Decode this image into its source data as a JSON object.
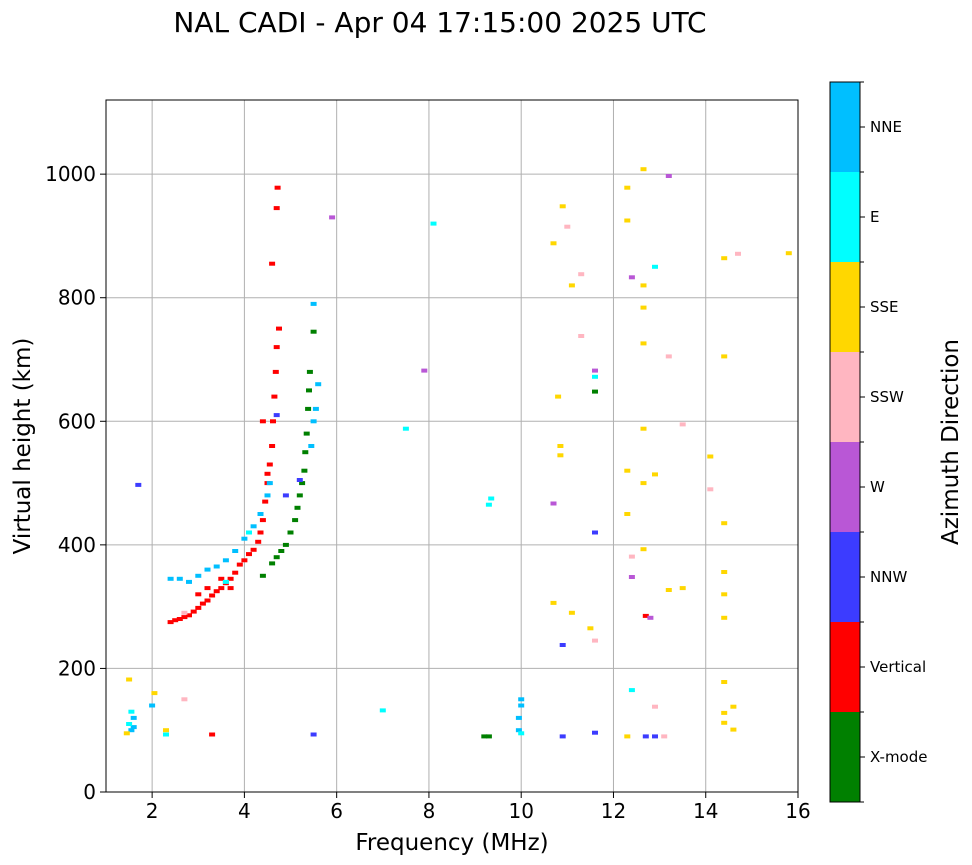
{
  "chart_data": {
    "type": "scatter",
    "title": "NAL CADI - Apr 04 17:15:00 2025 UTC",
    "xlabel": "Frequency (MHz)",
    "ylabel": "Virtual height (km)",
    "xlim": [
      1,
      16
    ],
    "ylim": [
      0,
      1120
    ],
    "xticks": [
      2,
      4,
      6,
      8,
      10,
      12,
      14,
      16
    ],
    "yticks": [
      0,
      200,
      400,
      600,
      800,
      1000
    ],
    "grid": true,
    "colorbar": {
      "label": "Azimuth Direction",
      "categories": [
        {
          "name": "X-mode",
          "color": "#008000"
        },
        {
          "name": "Vertical",
          "color": "#ff0000"
        },
        {
          "name": "NNW",
          "color": "#3c3cff"
        },
        {
          "name": "W",
          "color": "#b957d6"
        },
        {
          "name": "SSW",
          "color": "#ffb6c1"
        },
        {
          "name": "SSE",
          "color": "#ffd700"
        },
        {
          "name": "E",
          "color": "#00ffff"
        },
        {
          "name": "NNE",
          "color": "#00bfff"
        }
      ]
    },
    "traces": [
      {
        "category": "Vertical",
        "points": [
          [
            2.4,
            275
          ],
          [
            2.5,
            278
          ],
          [
            2.6,
            280
          ],
          [
            2.7,
            283
          ],
          [
            2.8,
            286
          ],
          [
            2.9,
            292
          ],
          [
            3.0,
            298
          ],
          [
            3.1,
            305
          ],
          [
            3.2,
            310
          ],
          [
            3.3,
            318
          ],
          [
            3.4,
            325
          ],
          [
            3.5,
            330
          ],
          [
            3.6,
            338
          ],
          [
            3.7,
            345
          ],
          [
            3.8,
            355
          ],
          [
            3.9,
            368
          ],
          [
            4.0,
            375
          ],
          [
            4.1,
            385
          ],
          [
            4.2,
            392
          ],
          [
            4.3,
            405
          ],
          [
            4.35,
            420
          ],
          [
            4.4,
            440
          ],
          [
            4.45,
            470
          ],
          [
            4.5,
            500
          ],
          [
            4.55,
            530
          ],
          [
            4.6,
            560
          ],
          [
            4.62,
            600
          ],
          [
            4.65,
            640
          ],
          [
            4.68,
            680
          ],
          [
            4.7,
            720
          ],
          [
            4.75,
            750
          ],
          [
            4.6,
            855
          ],
          [
            4.7,
            945
          ],
          [
            4.72,
            978
          ],
          [
            3.3,
            93
          ],
          [
            3.0,
            320
          ],
          [
            3.2,
            330
          ],
          [
            3.5,
            345
          ],
          [
            3.7,
            330
          ],
          [
            4.5,
            515
          ],
          [
            4.4,
            600
          ],
          [
            12.7,
            285
          ]
        ]
      },
      {
        "category": "X-mode",
        "points": [
          [
            4.4,
            350
          ],
          [
            4.6,
            370
          ],
          [
            4.7,
            380
          ],
          [
            4.8,
            390
          ],
          [
            4.9,
            400
          ],
          [
            5.0,
            420
          ],
          [
            5.1,
            440
          ],
          [
            5.15,
            460
          ],
          [
            5.2,
            480
          ],
          [
            5.25,
            500
          ],
          [
            5.3,
            520
          ],
          [
            5.32,
            550
          ],
          [
            5.35,
            580
          ],
          [
            5.38,
            620
          ],
          [
            5.4,
            650
          ],
          [
            5.42,
            680
          ],
          [
            5.5,
            745
          ],
          [
            11.6,
            648
          ],
          [
            9.3,
            90
          ],
          [
            9.2,
            90
          ]
        ]
      },
      {
        "category": "NNE",
        "points": [
          [
            2.4,
            345
          ],
          [
            2.6,
            345
          ],
          [
            2.8,
            340
          ],
          [
            3.0,
            350
          ],
          [
            3.2,
            360
          ],
          [
            3.4,
            365
          ],
          [
            3.6,
            375
          ],
          [
            3.8,
            390
          ],
          [
            4.0,
            410
          ],
          [
            4.2,
            430
          ],
          [
            4.35,
            450
          ],
          [
            4.5,
            480
          ],
          [
            4.55,
            500
          ],
          [
            5.45,
            560
          ],
          [
            5.5,
            600
          ],
          [
            5.55,
            620
          ],
          [
            5.6,
            660
          ],
          [
            5.5,
            790
          ],
          [
            1.6,
            120
          ],
          [
            1.6,
            105
          ],
          [
            1.55,
            100
          ],
          [
            2.0,
            140
          ],
          [
            9.95,
            100
          ],
          [
            9.95,
            120
          ],
          [
            10.0,
            140
          ],
          [
            10.0,
            150
          ]
        ]
      },
      {
        "category": "E",
        "points": [
          [
            1.5,
            110
          ],
          [
            1.55,
            130
          ],
          [
            2.3,
            93
          ],
          [
            7.0,
            132
          ],
          [
            7.5,
            588
          ],
          [
            8.1,
            920
          ],
          [
            9.3,
            465
          ],
          [
            9.35,
            475
          ],
          [
            11.6,
            672
          ],
          [
            12.4,
            165
          ],
          [
            12.9,
            850
          ],
          [
            10.0,
            95
          ],
          [
            3.6,
            340
          ],
          [
            4.1,
            420
          ]
        ]
      },
      {
        "category": "NNW",
        "points": [
          [
            1.7,
            497
          ],
          [
            5.5,
            93
          ],
          [
            10.9,
            238
          ],
          [
            10.9,
            90
          ],
          [
            11.6,
            96
          ],
          [
            11.6,
            420
          ],
          [
            12.7,
            90
          ],
          [
            12.9,
            90
          ],
          [
            4.9,
            480
          ],
          [
            5.2,
            505
          ],
          [
            4.7,
            610
          ]
        ]
      },
      {
        "category": "W",
        "points": [
          [
            5.9,
            930
          ],
          [
            7.9,
            682
          ],
          [
            10.7,
            467
          ],
          [
            11.6,
            682
          ],
          [
            12.4,
            348
          ],
          [
            12.4,
            833
          ],
          [
            13.2,
            997
          ],
          [
            12.8,
            282
          ]
        ]
      },
      {
        "category": "SSW",
        "points": [
          [
            2.7,
            150
          ],
          [
            11.0,
            915
          ],
          [
            11.3,
            838
          ],
          [
            11.3,
            738
          ],
          [
            11.6,
            245
          ],
          [
            12.4,
            381
          ],
          [
            12.9,
            138
          ],
          [
            13.2,
            705
          ],
          [
            13.5,
            595
          ],
          [
            14.1,
            490
          ],
          [
            14.7,
            871
          ],
          [
            2.7,
            290
          ],
          [
            13.1,
            90
          ]
        ]
      },
      {
        "category": "SSE",
        "points": [
          [
            1.5,
            182
          ],
          [
            1.45,
            95
          ],
          [
            2.05,
            160
          ],
          [
            2.3,
            100
          ],
          [
            10.7,
            306
          ],
          [
            10.7,
            888
          ],
          [
            10.8,
            640
          ],
          [
            10.85,
            560
          ],
          [
            10.85,
            545
          ],
          [
            10.9,
            948
          ],
          [
            11.1,
            820
          ],
          [
            11.1,
            290
          ],
          [
            11.5,
            265
          ],
          [
            12.3,
            978
          ],
          [
            12.3,
            925
          ],
          [
            12.3,
            520
          ],
          [
            12.3,
            450
          ],
          [
            12.3,
            90
          ],
          [
            12.65,
            1008
          ],
          [
            12.65,
            820
          ],
          [
            12.65,
            784
          ],
          [
            12.65,
            726
          ],
          [
            12.65,
            588
          ],
          [
            12.65,
            500
          ],
          [
            12.65,
            393
          ],
          [
            12.9,
            514
          ],
          [
            13.2,
            327
          ],
          [
            13.5,
            330
          ],
          [
            14.1,
            543
          ],
          [
            14.4,
            864
          ],
          [
            14.4,
            705
          ],
          [
            14.4,
            435
          ],
          [
            14.4,
            356
          ],
          [
            14.4,
            320
          ],
          [
            14.4,
            282
          ],
          [
            14.4,
            178
          ],
          [
            14.4,
            128
          ],
          [
            14.4,
            112
          ],
          [
            14.6,
            138
          ],
          [
            14.6,
            101
          ],
          [
            15.8,
            872
          ]
        ]
      }
    ]
  }
}
